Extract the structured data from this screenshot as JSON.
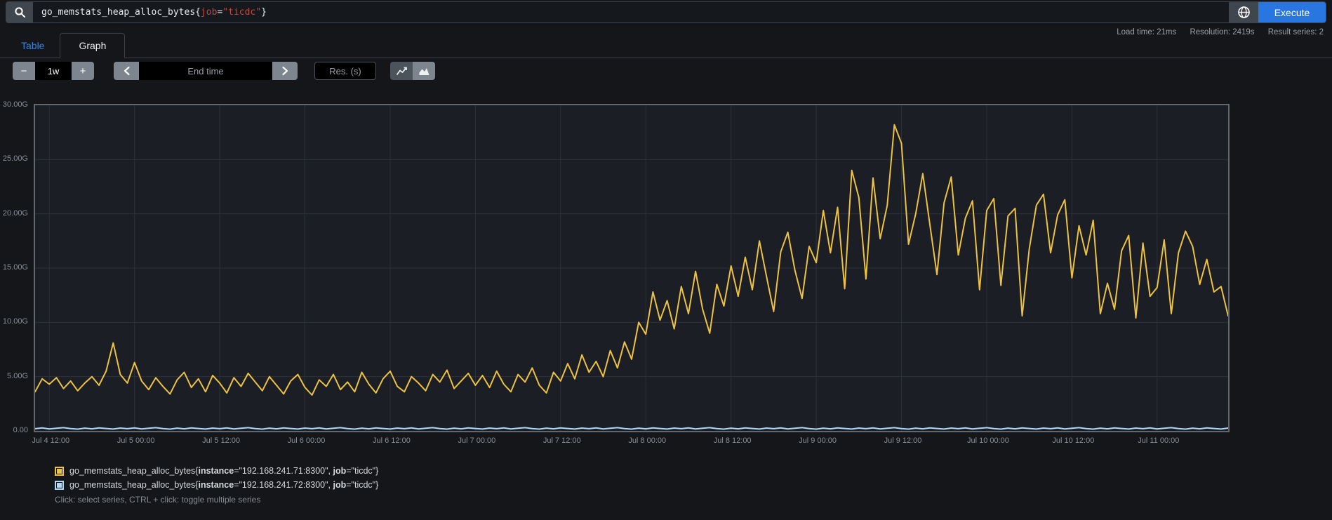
{
  "query_bar": {
    "query_parts": {
      "metric": "go_memstats_heap_alloc_bytes{",
      "label": "job",
      "eq": "=",
      "value": "\"ticdc\"",
      "close": "}"
    },
    "execute_label": "Execute"
  },
  "stats": {
    "load_time": "Load time: 21ms",
    "resolution": "Resolution: 2419s",
    "result_series": "Result series: 2"
  },
  "tabs": {
    "table": "Table",
    "graph": "Graph"
  },
  "toolbar": {
    "minus": "−",
    "plus": "+",
    "range_value": "1w",
    "end_time_placeholder": "End time",
    "res_placeholder": "Res. (s)"
  },
  "colors": {
    "series_yellow": "#edc240",
    "series_blue": "#afd8f8",
    "execute_blue": "#2a76e0",
    "link_blue": "#3585e0",
    "query_red": "#bf4a45",
    "grid": "#2d3138",
    "plot_border": "#62676d",
    "plot_bg": "#1b1e24",
    "page_bg": "#141619"
  },
  "chart_data": {
    "type": "line",
    "title": "go_memstats_heap_alloc_bytes{job=\"ticdc\"}",
    "xlabel": "",
    "ylabel": "",
    "x_start": "Jul 4 10:00",
    "x_end": "Jul 11 10:00",
    "x_step_hours": 1,
    "ylim": [
      0,
      30
    ],
    "y_unit": "G",
    "grid": true,
    "legend_position": "bottom",
    "y_ticks": [
      {
        "v": 0,
        "label": "0.00"
      },
      {
        "v": 5,
        "label": "5.00G"
      },
      {
        "v": 10,
        "label": "10.00G"
      },
      {
        "v": 15,
        "label": "15.00G"
      },
      {
        "v": 20,
        "label": "20.00G"
      },
      {
        "v": 25,
        "label": "25.00G"
      },
      {
        "v": 30,
        "label": "30.00G"
      }
    ],
    "x_ticks": [
      {
        "idx": 2,
        "label": "Jul 4 12:00"
      },
      {
        "idx": 14,
        "label": "Jul 5 00:00"
      },
      {
        "idx": 26,
        "label": "Jul 5 12:00"
      },
      {
        "idx": 38,
        "label": "Jul 6 00:00"
      },
      {
        "idx": 50,
        "label": "Jul 6 12:00"
      },
      {
        "idx": 62,
        "label": "Jul 7 00:00"
      },
      {
        "idx": 74,
        "label": "Jul 7 12:00"
      },
      {
        "idx": 86,
        "label": "Jul 8 00:00"
      },
      {
        "idx": 98,
        "label": "Jul 8 12:00"
      },
      {
        "idx": 110,
        "label": "Jul 9 00:00"
      },
      {
        "idx": 122,
        "label": "Jul 9 12:00"
      },
      {
        "idx": 134,
        "label": "Jul 10 00:00"
      },
      {
        "idx": 146,
        "label": "Jul 10 12:00"
      },
      {
        "idx": 158,
        "label": "Jul 11 00:00"
      }
    ],
    "series": [
      {
        "name": "go_memstats_heap_alloc_bytes{instance=\"192.168.241.71:8300\", job=\"ticdc\"}",
        "color": "#edc240",
        "values": [
          3.6,
          4.8,
          4.3,
          4.9,
          3.9,
          4.6,
          3.7,
          4.4,
          5.0,
          4.2,
          5.5,
          8.1,
          5.2,
          4.4,
          6.3,
          4.6,
          3.8,
          4.9,
          4.1,
          3.4,
          4.7,
          5.4,
          4.0,
          4.8,
          3.6,
          5.1,
          4.4,
          3.5,
          4.9,
          4.1,
          5.3,
          4.5,
          3.7,
          5.0,
          4.2,
          3.4,
          4.6,
          5.2,
          4.0,
          3.3,
          4.7,
          4.1,
          5.2,
          3.8,
          4.5,
          3.6,
          5.4,
          4.3,
          3.5,
          4.8,
          5.5,
          4.1,
          3.6,
          5.0,
          4.4,
          3.7,
          5.2,
          4.5,
          5.6,
          3.9,
          4.6,
          5.3,
          4.2,
          5.1,
          4.0,
          5.5,
          4.3,
          3.6,
          5.2,
          4.5,
          5.8,
          4.2,
          3.5,
          5.4,
          4.6,
          6.2,
          4.8,
          7.0,
          5.4,
          6.4,
          5.0,
          7.4,
          5.8,
          8.2,
          6.6,
          10.0,
          8.9,
          12.8,
          10.2,
          12.0,
          9.4,
          13.3,
          10.8,
          14.7,
          11.2,
          9.0,
          13.5,
          11.5,
          15.2,
          12.4,
          16.0,
          13.0,
          17.5,
          14.2,
          11.0,
          16.5,
          18.3,
          14.8,
          12.2,
          17.0,
          15.5,
          20.3,
          16.4,
          20.6,
          13.1,
          24.0,
          21.5,
          14.0,
          23.3,
          17.7,
          20.8,
          28.2,
          26.5,
          17.2,
          20.0,
          23.7,
          19.0,
          14.4,
          21.0,
          23.4,
          16.2,
          19.6,
          21.2,
          13.0,
          20.3,
          21.4,
          13.4,
          19.8,
          20.5,
          10.6,
          16.8,
          20.8,
          21.8,
          16.4,
          19.9,
          21.3,
          14.1,
          18.9,
          16.2,
          19.4,
          10.8,
          13.6,
          11.2,
          16.6,
          18.0,
          10.4,
          17.3,
          12.4,
          13.2,
          17.6,
          10.8,
          16.4,
          18.4,
          17.0,
          13.5,
          15.8,
          12.8,
          13.3,
          10.6
        ]
      },
      {
        "name": "go_memstats_heap_alloc_bytes{instance=\"192.168.241.72:8300\", job=\"ticdc\"}",
        "color": "#afd8f8",
        "values": [
          0.2,
          0.27,
          0.18,
          0.24,
          0.3,
          0.21,
          0.16,
          0.25,
          0.19,
          0.28,
          0.22,
          0.17,
          0.26,
          0.2,
          0.27,
          0.18,
          0.24,
          0.3,
          0.21,
          0.16,
          0.25,
          0.19,
          0.28,
          0.22,
          0.17,
          0.26,
          0.2,
          0.27,
          0.18,
          0.24,
          0.3,
          0.21,
          0.16,
          0.25,
          0.19,
          0.28,
          0.22,
          0.17,
          0.26,
          0.2,
          0.27,
          0.18,
          0.24,
          0.3,
          0.21,
          0.16,
          0.25,
          0.19,
          0.28,
          0.22,
          0.17,
          0.26,
          0.2,
          0.27,
          0.18,
          0.24,
          0.3,
          0.21,
          0.16,
          0.25,
          0.19,
          0.28,
          0.22,
          0.17,
          0.26,
          0.2,
          0.27,
          0.18,
          0.24,
          0.3,
          0.21,
          0.16,
          0.25,
          0.19,
          0.28,
          0.22,
          0.17,
          0.26,
          0.2,
          0.27,
          0.18,
          0.24,
          0.3,
          0.21,
          0.16,
          0.25,
          0.19,
          0.28,
          0.22,
          0.17,
          0.26,
          0.2,
          0.27,
          0.18,
          0.24,
          0.3,
          0.21,
          0.16,
          0.25,
          0.19,
          0.28,
          0.22,
          0.17,
          0.26,
          0.2,
          0.27,
          0.18,
          0.24,
          0.3,
          0.21,
          0.16,
          0.25,
          0.19,
          0.28,
          0.22,
          0.17,
          0.26,
          0.2,
          0.27,
          0.18,
          0.24,
          0.3,
          0.21,
          0.16,
          0.25,
          0.19,
          0.28,
          0.22,
          0.17,
          0.26,
          0.2,
          0.27,
          0.18,
          0.24,
          0.3,
          0.21,
          0.16,
          0.25,
          0.19,
          0.28,
          0.22,
          0.17,
          0.26,
          0.2,
          0.27,
          0.18,
          0.24,
          0.3,
          0.21,
          0.16,
          0.25,
          0.19,
          0.28,
          0.22,
          0.17,
          0.26,
          0.2,
          0.27,
          0.18,
          0.24,
          0.3,
          0.21,
          0.16,
          0.25,
          0.19,
          0.28,
          0.22,
          0.17,
          0.26
        ]
      }
    ]
  },
  "legend": {
    "series": [
      {
        "parts": [
          "go_memstats_heap_alloc_bytes{",
          "instance",
          "=\"192.168.241.71:8300\", ",
          "job",
          "=\"ticdc\"}"
        ]
      },
      {
        "parts": [
          "go_memstats_heap_alloc_bytes{",
          "instance",
          "=\"192.168.241.72:8300\", ",
          "job",
          "=\"ticdc\"}"
        ]
      }
    ],
    "hint": "Click: select series, CTRL + click: toggle multiple series"
  }
}
